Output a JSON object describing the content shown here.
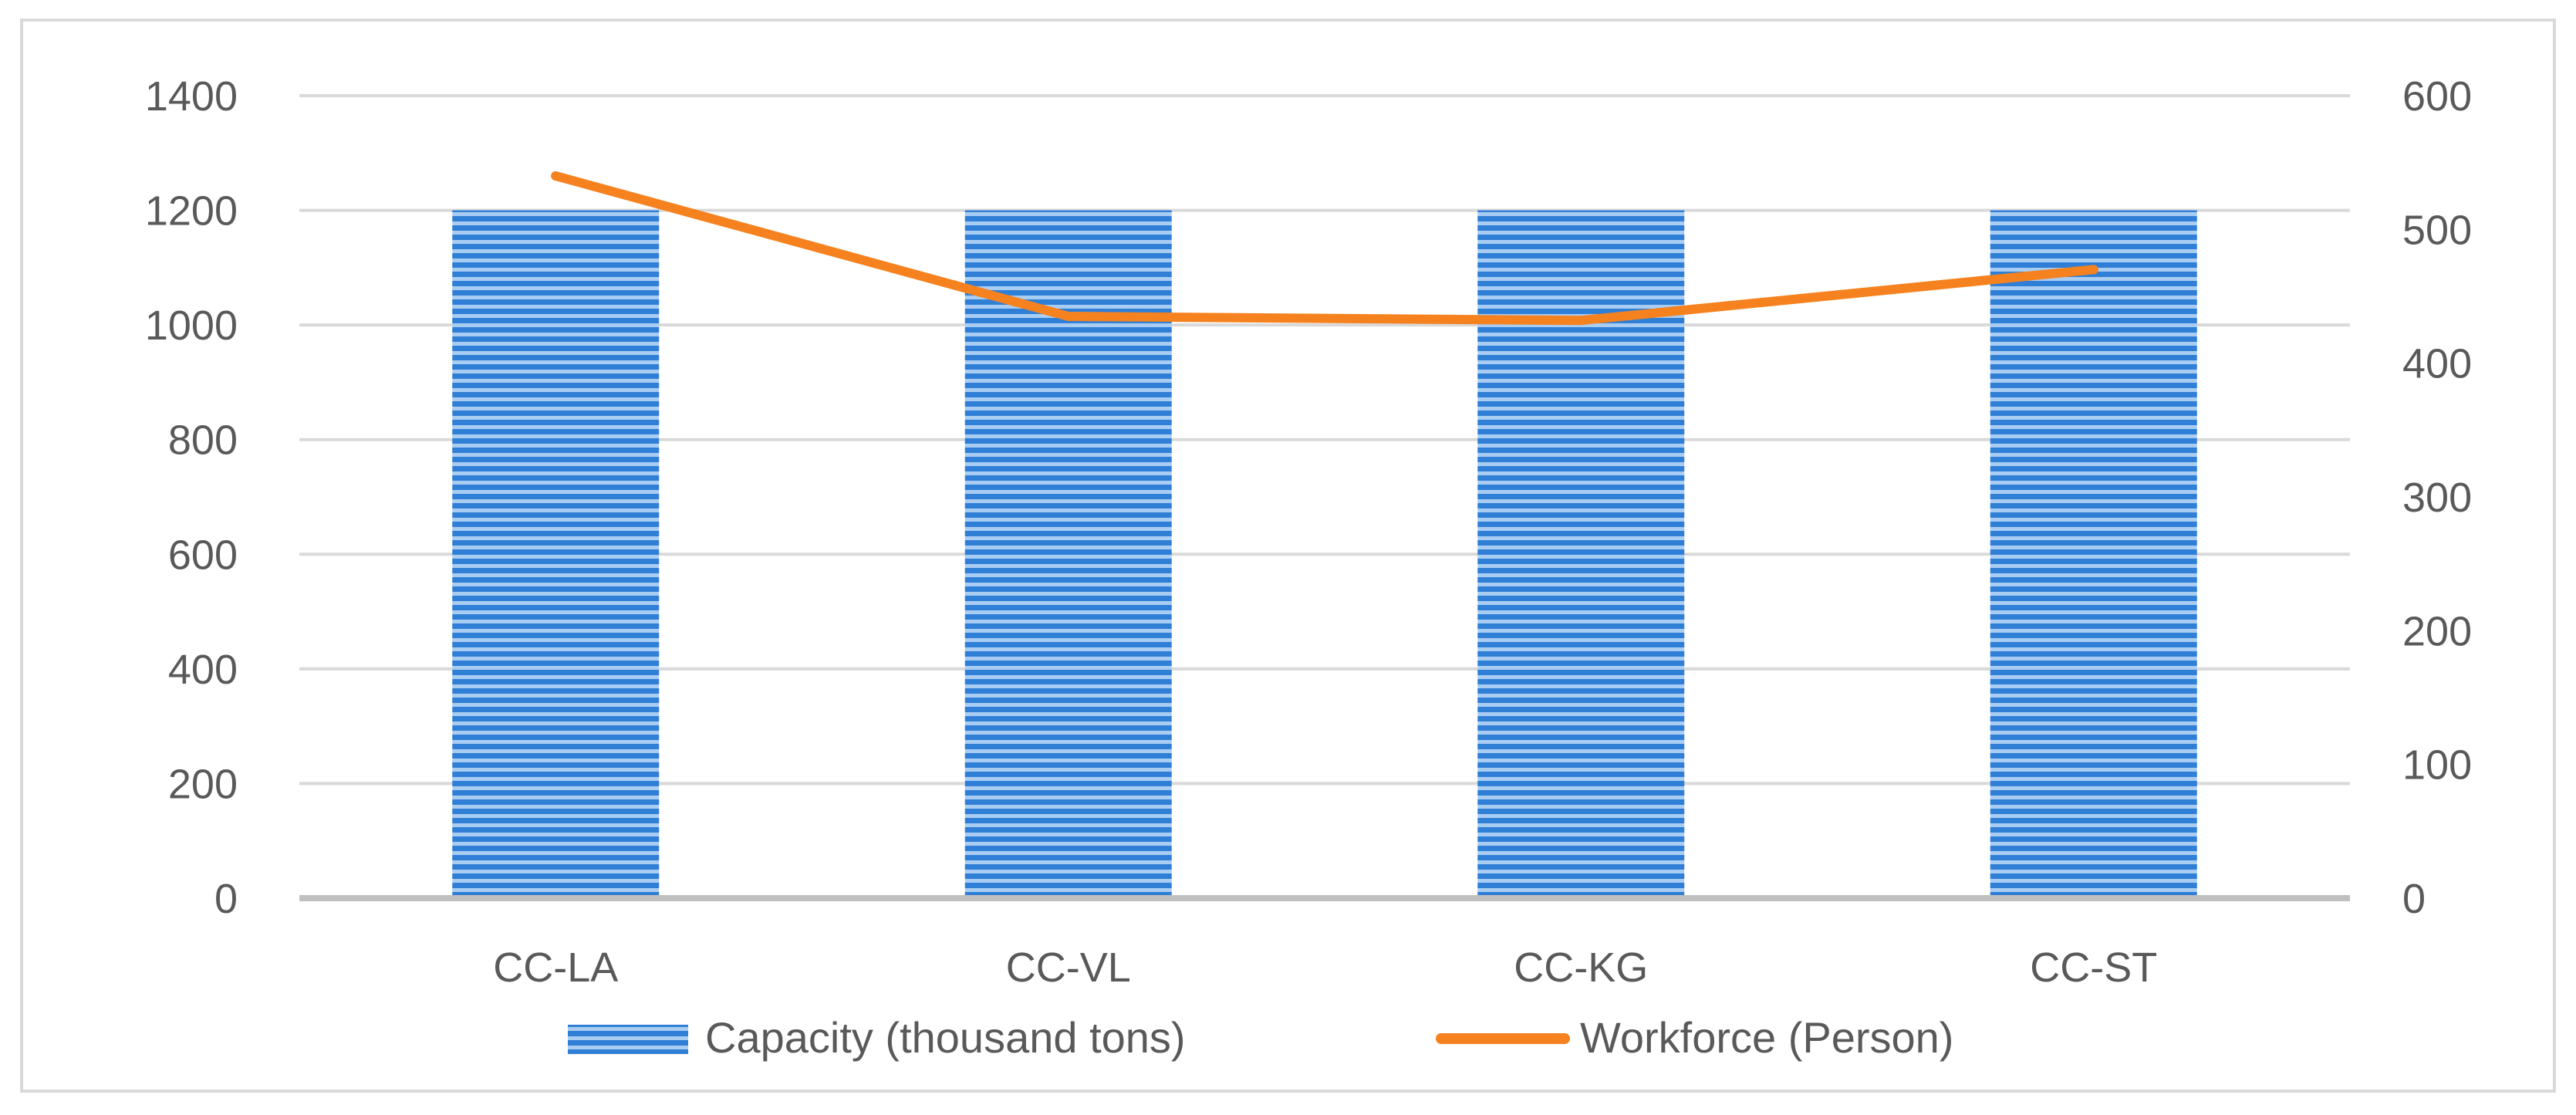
{
  "chart_data": {
    "type": "bar",
    "title": "",
    "categories": [
      "CC-LA",
      "CC-VL",
      "CC-KG",
      "CC-ST"
    ],
    "series": [
      {
        "name": "Capacity (thousand tons)",
        "type": "bar",
        "axis": "left",
        "values": [
          1200,
          1200,
          1200,
          1200
        ],
        "color": "#2f7fd6",
        "fill_pattern": "horizontal-stripes"
      },
      {
        "name": "Workforce (Person)",
        "type": "line",
        "axis": "right",
        "values": [
          540,
          435,
          432,
          470
        ],
        "color": "#f5821f"
      }
    ],
    "y_left": {
      "ylim": [
        0,
        1400
      ],
      "ticks": [
        0,
        200,
        400,
        600,
        800,
        1000,
        1200,
        1400
      ]
    },
    "y_right": {
      "ylim": [
        0,
        600
      ],
      "ticks": [
        0,
        100,
        200,
        300,
        400,
        500,
        600
      ]
    },
    "xlabel": "",
    "ylabel": "",
    "grid": true,
    "legend_position": "bottom",
    "colors": {
      "gridline": "#d9d9d9",
      "axis": "#bfbfbf",
      "text": "#595959"
    }
  }
}
